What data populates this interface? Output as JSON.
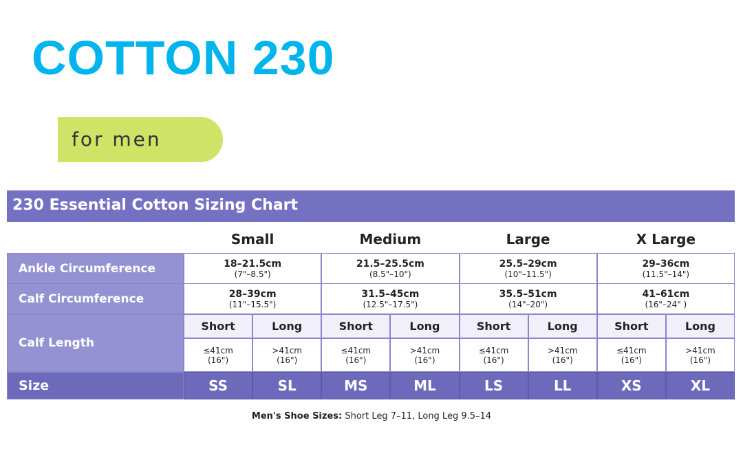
{
  "header": {
    "title": "COTTON 230",
    "tag": "for men"
  },
  "table": {
    "title": "230 Essential Cotton Sizing Chart",
    "columns": [
      "Small",
      "Medium",
      "Large",
      "X Large"
    ],
    "rows": [
      {
        "label": "Ankle Circumference",
        "cells": [
          {
            "main": "18–21.5cm",
            "sub": "(7\"–8.5\")"
          },
          {
            "main": "21.5–25.5cm",
            "sub": "(8.5\"–10\")"
          },
          {
            "main": "25.5–29cm",
            "sub": "(10\"–11.5\")"
          },
          {
            "main": "29–36cm",
            "sub": "(11.5\"–14\")"
          }
        ]
      },
      {
        "label": "Calf Circumference",
        "cells": [
          {
            "main": "28–39cm",
            "sub": "(11\"–15.5\")"
          },
          {
            "main": "31.5–45cm",
            "sub": "(12.5\"–17.5\")"
          },
          {
            "main": "35.5–51cm",
            "sub": "(14\"–20\")"
          },
          {
            "main": "41–61cm",
            "sub": "(16\"–24\" )"
          }
        ]
      }
    ],
    "calf_length": {
      "label": "Calf Length",
      "subcolumns": [
        {
          "name": "Short",
          "range": "≤41cm",
          "inch": "(16\")"
        },
        {
          "name": "Long",
          "range": ">41cm",
          "inch": "(16\")"
        },
        {
          "name": "Short",
          "range": "≤41cm",
          "inch": "(16\")"
        },
        {
          "name": "Long",
          "range": ">41cm",
          "inch": "(16\")"
        },
        {
          "name": "Short",
          "range": "≤41cm",
          "inch": "(16\")"
        },
        {
          "name": "Long",
          "range": ">41cm",
          "inch": "(16\")"
        },
        {
          "name": "Short",
          "range": "≤41cm",
          "inch": "(16\")"
        },
        {
          "name": "Long",
          "range": ">41cm",
          "inch": "(16\")"
        }
      ]
    },
    "size": {
      "label": "Size",
      "values": [
        "SS",
        "SL",
        "MS",
        "ML",
        "LS",
        "LL",
        "XS",
        "XL"
      ]
    }
  },
  "footnote": {
    "bold": "Men's Shoe Sizes:",
    "text": " Short Leg 7–11, Long Leg 9.5–14"
  }
}
